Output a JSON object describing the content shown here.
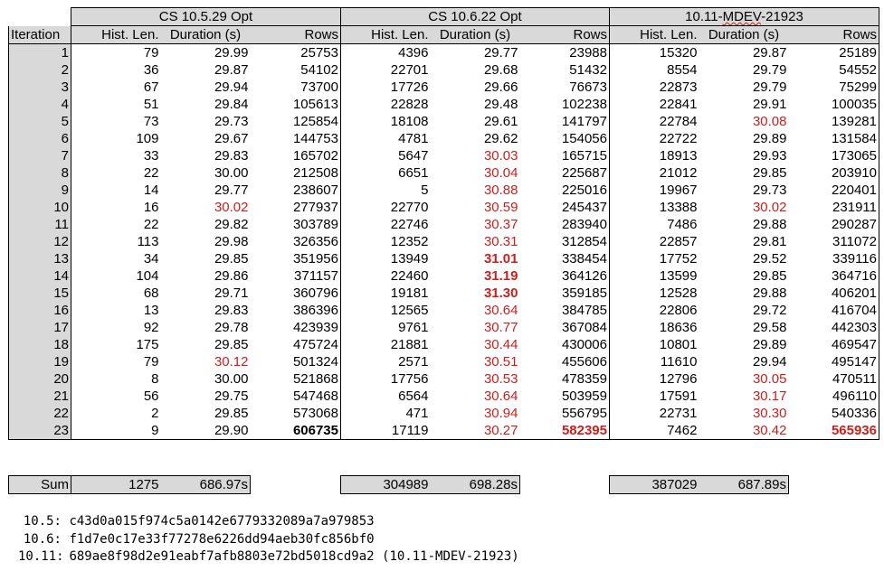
{
  "groups": [
    {
      "title": "CS 10.5.29 Opt"
    },
    {
      "title": "CS 10.6.22 Opt"
    },
    {
      "title": "10.11-MDEV-21923",
      "title_pre": "10.11-",
      "title_squiggle": "MDEV",
      "title_post": "-21923"
    }
  ],
  "columns": {
    "iteration": "Iteration",
    "hist_len": "Hist. Len.",
    "duration": "Duration (s)",
    "rows": "Rows"
  },
  "rows": [
    {
      "it": "1",
      "g": [
        [
          "79",
          "29.99",
          "25753"
        ],
        [
          "4396",
          "29.77",
          "23988"
        ],
        [
          "15320",
          "29.87",
          "25189"
        ]
      ]
    },
    {
      "it": "2",
      "g": [
        [
          "36",
          "29.87",
          "54102"
        ],
        [
          "22701",
          "29.68",
          "51432"
        ],
        [
          "8554",
          "29.79",
          "54552"
        ]
      ]
    },
    {
      "it": "3",
      "g": [
        [
          "67",
          "29.94",
          "73700"
        ],
        [
          "17726",
          "29.66",
          "76673"
        ],
        [
          "22873",
          "29.79",
          "75299"
        ]
      ]
    },
    {
      "it": "4",
      "g": [
        [
          "51",
          "29.84",
          "105613"
        ],
        [
          "22828",
          "29.48",
          "102238"
        ],
        [
          "22841",
          "29.91",
          "100035"
        ]
      ]
    },
    {
      "it": "5",
      "g": [
        [
          "73",
          "29.73",
          "125854"
        ],
        [
          "18108",
          "29.61",
          "141797"
        ],
        [
          "22784",
          "30.08",
          "139281"
        ]
      ]
    },
    {
      "it": "6",
      "g": [
        [
          "109",
          "29.67",
          "144753"
        ],
        [
          "4781",
          "29.62",
          "154056"
        ],
        [
          "22722",
          "29.89",
          "131584"
        ]
      ]
    },
    {
      "it": "7",
      "g": [
        [
          "33",
          "29.83",
          "165702"
        ],
        [
          "5647",
          "30.03",
          "165715"
        ],
        [
          "18913",
          "29.93",
          "173065"
        ]
      ]
    },
    {
      "it": "8",
      "g": [
        [
          "22",
          "30.00",
          "212508"
        ],
        [
          "6651",
          "30.04",
          "225687"
        ],
        [
          "21012",
          "29.85",
          "203910"
        ]
      ]
    },
    {
      "it": "9",
      "g": [
        [
          "14",
          "29.77",
          "238607"
        ],
        [
          "5",
          "30.88",
          "225016"
        ],
        [
          "19967",
          "29.73",
          "220401"
        ]
      ]
    },
    {
      "it": "10",
      "g": [
        [
          "16",
          "30.02",
          "277937"
        ],
        [
          "22770",
          "30.59",
          "245437"
        ],
        [
          "13388",
          "30.02",
          "231911"
        ]
      ]
    },
    {
      "it": "11",
      "g": [
        [
          "22",
          "29.82",
          "303789"
        ],
        [
          "22746",
          "30.37",
          "283940"
        ],
        [
          "7486",
          "29.88",
          "290287"
        ]
      ]
    },
    {
      "it": "12",
      "g": [
        [
          "113",
          "29.98",
          "326356"
        ],
        [
          "12352",
          "30.31",
          "312854"
        ],
        [
          "22857",
          "29.81",
          "311072"
        ]
      ]
    },
    {
      "it": "13",
      "g": [
        [
          "34",
          "29.85",
          "351956"
        ],
        [
          "13949",
          "31.01",
          "338454"
        ],
        [
          "17752",
          "29.52",
          "339116"
        ]
      ]
    },
    {
      "it": "14",
      "g": [
        [
          "104",
          "29.86",
          "371157"
        ],
        [
          "22460",
          "31.19",
          "364126"
        ],
        [
          "13599",
          "29.85",
          "364716"
        ]
      ]
    },
    {
      "it": "15",
      "g": [
        [
          "68",
          "29.71",
          "360796"
        ],
        [
          "19181",
          "31.30",
          "359185"
        ],
        [
          "12528",
          "29.88",
          "406201"
        ]
      ]
    },
    {
      "it": "16",
      "g": [
        [
          "13",
          "29.83",
          "386396"
        ],
        [
          "12565",
          "30.64",
          "384785"
        ],
        [
          "22806",
          "29.72",
          "416704"
        ]
      ]
    },
    {
      "it": "17",
      "g": [
        [
          "92",
          "29.78",
          "423939"
        ],
        [
          "9761",
          "30.77",
          "367084"
        ],
        [
          "18636",
          "29.58",
          "442303"
        ]
      ]
    },
    {
      "it": "18",
      "g": [
        [
          "175",
          "29.85",
          "475724"
        ],
        [
          "21881",
          "30.44",
          "430006"
        ],
        [
          "10801",
          "29.89",
          "469547"
        ]
      ]
    },
    {
      "it": "19",
      "g": [
        [
          "79",
          "30.12",
          "501324"
        ],
        [
          "2571",
          "30.51",
          "455606"
        ],
        [
          "11610",
          "29.94",
          "495147"
        ]
      ]
    },
    {
      "it": "20",
      "g": [
        [
          "8",
          "30.00",
          "521868"
        ],
        [
          "17756",
          "30.53",
          "478359"
        ],
        [
          "12796",
          "30.05",
          "470511"
        ]
      ]
    },
    {
      "it": "21",
      "g": [
        [
          "56",
          "29.75",
          "547468"
        ],
        [
          "6564",
          "30.64",
          "503959"
        ],
        [
          "17591",
          "30.17",
          "496110"
        ]
      ]
    },
    {
      "it": "22",
      "g": [
        [
          "2",
          "29.85",
          "573068"
        ],
        [
          "471",
          "30.94",
          "556795"
        ],
        [
          "22731",
          "30.30",
          "540336"
        ]
      ]
    },
    {
      "it": "23",
      "g": [
        [
          "9",
          "29.90",
          "606735"
        ],
        [
          "17119",
          "30.27",
          "582395"
        ],
        [
          "7462",
          "30.42",
          "565936"
        ]
      ]
    }
  ],
  "styles": {
    "red": [
      "1-10-1",
      "1-19-1",
      "2-7-1",
      "2-8-1",
      "2-9-1",
      "2-10-1",
      "2-11-1",
      "2-12-1",
      "2-16-1",
      "2-17-1",
      "2-18-1",
      "2-19-1",
      "2-20-1",
      "2-21-1",
      "2-22-1",
      "2-23-1",
      "3-5-1",
      "3-10-1",
      "3-20-1",
      "3-21-1",
      "3-22-1",
      "3-23-1"
    ],
    "boldred": [
      "2-13-1",
      "2-14-1",
      "2-15-1",
      "2-23-2",
      "3-23-2"
    ],
    "bold": [
      "1-23-2"
    ]
  },
  "sum": {
    "label": "Sum",
    "groups": [
      [
        "1275",
        "686.97s"
      ],
      [
        "304989",
        "698.28s"
      ],
      [
        "387029",
        "687.89s"
      ]
    ]
  },
  "hashes": [
    {
      "label": "10.5:",
      "value": "c43d0a015f974c5a0142e6779332089a7a979853"
    },
    {
      "label": "10.6:",
      "value": "f1d7e0c17e33f77278e6226dd94aeb30fc856bf0"
    },
    {
      "label": "10.11:",
      "value": "689ae8f98d2e91eabf7afb8803e72bd5018cd9a2 (10.11-MDEV-21923)"
    }
  ],
  "colors": {
    "header_bg": "#d9d9d9",
    "highlight": "#c9211e"
  }
}
